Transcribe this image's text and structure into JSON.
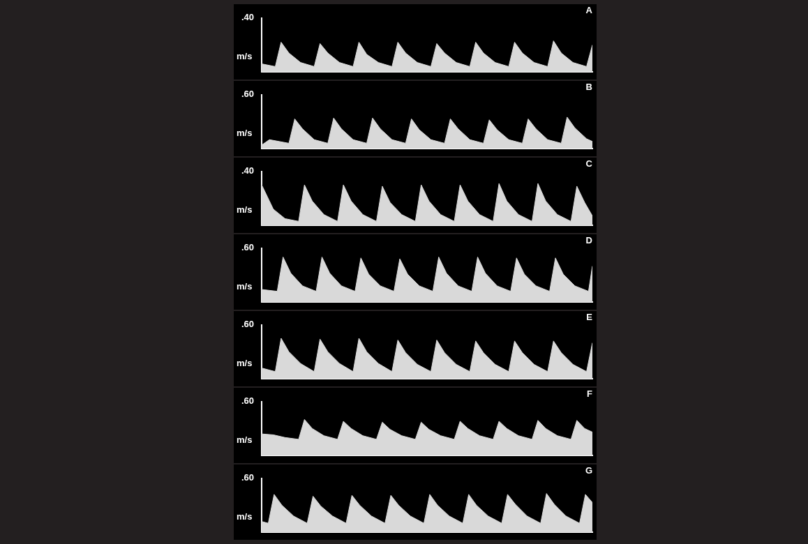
{
  "chart_data": [
    {
      "type": "line",
      "title": "A",
      "y_label": "m/s",
      "color": "#d9d9d9",
      "tick_labels": "y",
      "grid": false,
      "xlim": [
        0,
        8.5
      ],
      "ylim": [
        0,
        0.4
      ],
      "yticks": [
        {
          "value": 0.4,
          "label": ".40"
        }
      ],
      "x": [
        0,
        0.35,
        0.5,
        0.7,
        1,
        1.35,
        1.5,
        1.7,
        2,
        2.35,
        2.5,
        2.7,
        3,
        3.35,
        3.5,
        3.7,
        4,
        4.35,
        4.5,
        4.7,
        5,
        5.35,
        5.5,
        5.7,
        6,
        6.35,
        6.5,
        6.7,
        7,
        7.35,
        7.5,
        7.7,
        8,
        8.35,
        8.5
      ],
      "values": [
        0.06,
        0.04,
        0.22,
        0.14,
        0.07,
        0.04,
        0.21,
        0.14,
        0.07,
        0.04,
        0.22,
        0.13,
        0.07,
        0.04,
        0.22,
        0.14,
        0.07,
        0.04,
        0.21,
        0.14,
        0.07,
        0.04,
        0.22,
        0.14,
        0.07,
        0.04,
        0.22,
        0.14,
        0.07,
        0.04,
        0.23,
        0.14,
        0.07,
        0.04,
        0.2
      ]
    },
    {
      "type": "line",
      "title": "B",
      "y_label": "m/s",
      "color": "#d9d9d9",
      "tick_labels": "y",
      "grid": false,
      "xlim": [
        0,
        8.5
      ],
      "ylim": [
        0,
        0.6
      ],
      "yticks": [
        {
          "value": 0.6,
          "label": ".60"
        }
      ],
      "x": [
        0,
        0.2,
        0.7,
        0.85,
        1.05,
        1.35,
        1.7,
        1.85,
        2.05,
        2.35,
        2.7,
        2.85,
        3.05,
        3.35,
        3.7,
        3.85,
        4.05,
        4.35,
        4.7,
        4.85,
        5.05,
        5.35,
        5.7,
        5.85,
        6.05,
        6.35,
        6.7,
        6.85,
        7.05,
        7.35,
        7.7,
        7.85,
        8.05,
        8.35,
        8.5
      ],
      "values": [
        0.04,
        0.1,
        0.06,
        0.33,
        0.22,
        0.1,
        0.06,
        0.34,
        0.22,
        0.1,
        0.06,
        0.34,
        0.22,
        0.1,
        0.06,
        0.33,
        0.21,
        0.1,
        0.06,
        0.33,
        0.22,
        0.1,
        0.06,
        0.32,
        0.21,
        0.1,
        0.06,
        0.33,
        0.22,
        0.1,
        0.06,
        0.35,
        0.23,
        0.11,
        0.08
      ]
    },
    {
      "type": "line",
      "title": "C",
      "y_label": "m/s",
      "color": "#d9d9d9",
      "tick_labels": "y",
      "grid": false,
      "xlim": [
        0,
        8.5
      ],
      "ylim": [
        0,
        0.4
      ],
      "yticks": [
        {
          "value": 0.4,
          "label": ".40"
        }
      ],
      "x": [
        0,
        0.3,
        0.6,
        0.95,
        1.1,
        1.3,
        1.6,
        1.95,
        2.1,
        2.3,
        2.6,
        2.95,
        3.1,
        3.3,
        3.6,
        3.95,
        4.1,
        4.3,
        4.6,
        4.95,
        5.1,
        5.3,
        5.6,
        5.95,
        6.1,
        6.3,
        6.6,
        6.95,
        7.1,
        7.3,
        7.6,
        7.95,
        8.1,
        8.3,
        8.5
      ],
      "values": [
        0.3,
        0.12,
        0.05,
        0.03,
        0.3,
        0.18,
        0.08,
        0.03,
        0.3,
        0.18,
        0.08,
        0.03,
        0.29,
        0.17,
        0.08,
        0.03,
        0.3,
        0.18,
        0.08,
        0.03,
        0.3,
        0.18,
        0.08,
        0.03,
        0.31,
        0.18,
        0.08,
        0.03,
        0.31,
        0.18,
        0.08,
        0.03,
        0.29,
        0.17,
        0.07
      ]
    },
    {
      "type": "line",
      "title": "D",
      "y_label": "m/s",
      "color": "#d9d9d9",
      "tick_labels": "y",
      "grid": false,
      "xlim": [
        0,
        8.5
      ],
      "ylim": [
        0,
        0.6
      ],
      "yticks": [
        {
          "value": 0.6,
          "label": ".60"
        }
      ],
      "x": [
        0,
        0.4,
        0.55,
        0.75,
        1.05,
        1.4,
        1.55,
        1.75,
        2.05,
        2.4,
        2.55,
        2.75,
        3.05,
        3.4,
        3.55,
        3.75,
        4.05,
        4.4,
        4.55,
        4.75,
        5.05,
        5.4,
        5.55,
        5.75,
        6.05,
        6.4,
        6.55,
        6.75,
        7.05,
        7.4,
        7.55,
        7.75,
        8.05,
        8.4,
        8.5
      ],
      "values": [
        0.14,
        0.12,
        0.5,
        0.32,
        0.18,
        0.12,
        0.5,
        0.32,
        0.18,
        0.12,
        0.49,
        0.31,
        0.18,
        0.12,
        0.48,
        0.31,
        0.18,
        0.12,
        0.5,
        0.32,
        0.18,
        0.12,
        0.5,
        0.32,
        0.18,
        0.12,
        0.49,
        0.31,
        0.18,
        0.12,
        0.49,
        0.31,
        0.18,
        0.12,
        0.4
      ]
    },
    {
      "type": "line",
      "title": "E",
      "y_label": "m/s",
      "color": "#d9d9d9",
      "tick_labels": "y",
      "grid": false,
      "xlim": [
        0,
        8.5
      ],
      "ylim": [
        0,
        0.6
      ],
      "yticks": [
        {
          "value": 0.6,
          "label": ".60"
        }
      ],
      "x": [
        0,
        0.35,
        0.5,
        0.7,
        1,
        1.35,
        1.5,
        1.7,
        2,
        2.35,
        2.5,
        2.7,
        3,
        3.35,
        3.5,
        3.7,
        4,
        4.35,
        4.5,
        4.7,
        5,
        5.35,
        5.5,
        5.7,
        6,
        6.35,
        6.5,
        6.7,
        7,
        7.35,
        7.5,
        7.7,
        8,
        8.35,
        8.5
      ],
      "values": [
        0.12,
        0.08,
        0.45,
        0.3,
        0.17,
        0.08,
        0.44,
        0.3,
        0.17,
        0.08,
        0.45,
        0.3,
        0.17,
        0.08,
        0.43,
        0.29,
        0.16,
        0.08,
        0.43,
        0.29,
        0.16,
        0.08,
        0.42,
        0.29,
        0.16,
        0.08,
        0.42,
        0.29,
        0.16,
        0.08,
        0.42,
        0.29,
        0.16,
        0.08,
        0.4
      ]
    },
    {
      "type": "line",
      "title": "F",
      "y_label": "m/s",
      "color": "#d9d9d9",
      "tick_labels": "y",
      "grid": false,
      "xlim": [
        0,
        8.5
      ],
      "ylim": [
        0,
        0.6
      ],
      "yticks": [
        {
          "value": 0.6,
          "label": ".60"
        }
      ],
      "x": [
        0,
        0.3,
        0.6,
        0.95,
        1.1,
        1.3,
        1.6,
        1.95,
        2.1,
        2.3,
        2.6,
        2.95,
        3.1,
        3.3,
        3.6,
        3.95,
        4.1,
        4.3,
        4.6,
        4.95,
        5.1,
        5.3,
        5.6,
        5.95,
        6.1,
        6.3,
        6.6,
        6.95,
        7.1,
        7.3,
        7.6,
        7.95,
        8.1,
        8.3,
        8.5
      ],
      "values": [
        0.24,
        0.23,
        0.2,
        0.18,
        0.4,
        0.3,
        0.22,
        0.18,
        0.38,
        0.3,
        0.22,
        0.18,
        0.37,
        0.29,
        0.22,
        0.18,
        0.37,
        0.29,
        0.22,
        0.18,
        0.38,
        0.3,
        0.22,
        0.18,
        0.38,
        0.3,
        0.22,
        0.18,
        0.39,
        0.3,
        0.22,
        0.18,
        0.39,
        0.3,
        0.26
      ]
    },
    {
      "type": "line",
      "title": "G",
      "y_label": "m/s",
      "color": "#d9d9d9",
      "tick_labels": "y",
      "grid": false,
      "xlim": [
        0,
        8.5
      ],
      "ylim": [
        0,
        0.6
      ],
      "yticks": [
        {
          "value": 0.6,
          "label": ".60"
        }
      ],
      "x": [
        0,
        0.17,
        0.32,
        0.52,
        0.82,
        1.17,
        1.32,
        1.52,
        1.82,
        2.17,
        2.32,
        2.52,
        2.82,
        3.17,
        3.32,
        3.52,
        3.82,
        4.17,
        4.32,
        4.52,
        4.82,
        5.17,
        5.32,
        5.52,
        5.82,
        6.17,
        6.32,
        6.52,
        6.82,
        7.17,
        7.32,
        7.52,
        7.82,
        8.17,
        8.32,
        8.5
      ],
      "values": [
        0.12,
        0.1,
        0.42,
        0.3,
        0.18,
        0.1,
        0.4,
        0.29,
        0.18,
        0.1,
        0.41,
        0.3,
        0.18,
        0.1,
        0.41,
        0.3,
        0.18,
        0.1,
        0.42,
        0.3,
        0.18,
        0.1,
        0.42,
        0.3,
        0.18,
        0.1,
        0.42,
        0.31,
        0.18,
        0.1,
        0.43,
        0.31,
        0.18,
        0.1,
        0.42,
        0.33
      ]
    }
  ]
}
